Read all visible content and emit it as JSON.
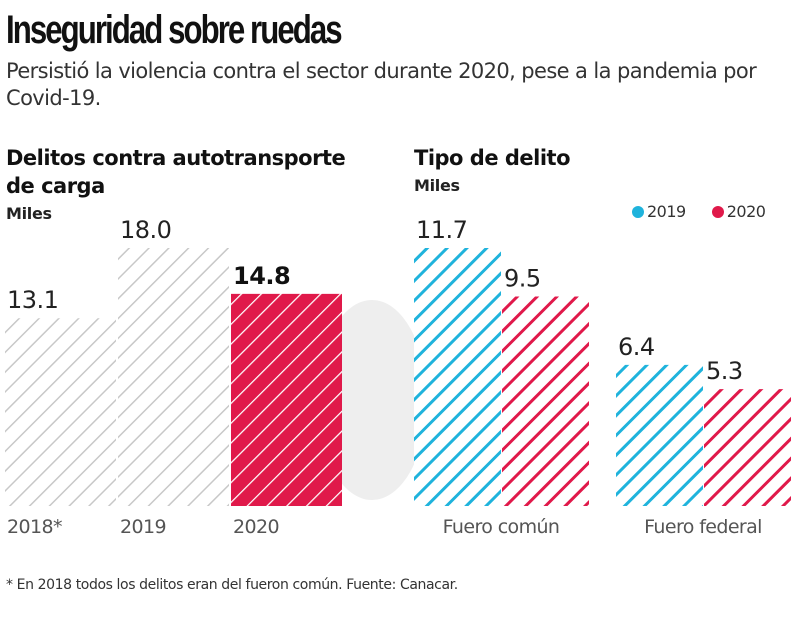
{
  "header": {
    "title": "Inseguridad sobre ruedas",
    "subtitle": "Persistió la violencia contra el sector durante 2020, pese a la pandemia por Covid-19."
  },
  "colors": {
    "y2019": "#1fb3dc",
    "y2020": "#e0194a",
    "neutral": "#c8c8c8",
    "watermark": "#eeeeee"
  },
  "chart_data": [
    {
      "type": "bar",
      "title": "Delitos contra autotransporte de carga",
      "ylabel": "Miles",
      "xlabel": "",
      "categories": [
        "2018*",
        "2019",
        "2020"
      ],
      "values": [
        13.1,
        18.0,
        14.8
      ],
      "value_labels": [
        "13.1",
        "18.0",
        "14.8"
      ],
      "highlight": "2020",
      "ylim": [
        0,
        18.0
      ],
      "grid": false,
      "legend": "none"
    },
    {
      "type": "bar",
      "title": "Tipo de delito",
      "ylabel": "Miles",
      "xlabel": "",
      "categories": [
        "Fuero común",
        "Fuero federal"
      ],
      "series": [
        {
          "name": "2019",
          "values": [
            11.7,
            6.4
          ],
          "value_labels": [
            "11.7",
            "6.4"
          ]
        },
        {
          "name": "2020",
          "values": [
            9.5,
            5.3
          ],
          "value_labels": [
            "9.5",
            "5.3"
          ]
        }
      ],
      "ylim": [
        0,
        11.7
      ],
      "grid": false,
      "legend": "top-right"
    }
  ],
  "footnote": "* En 2018 todos los delitos eran del fueron común. Fuente: Canacar."
}
